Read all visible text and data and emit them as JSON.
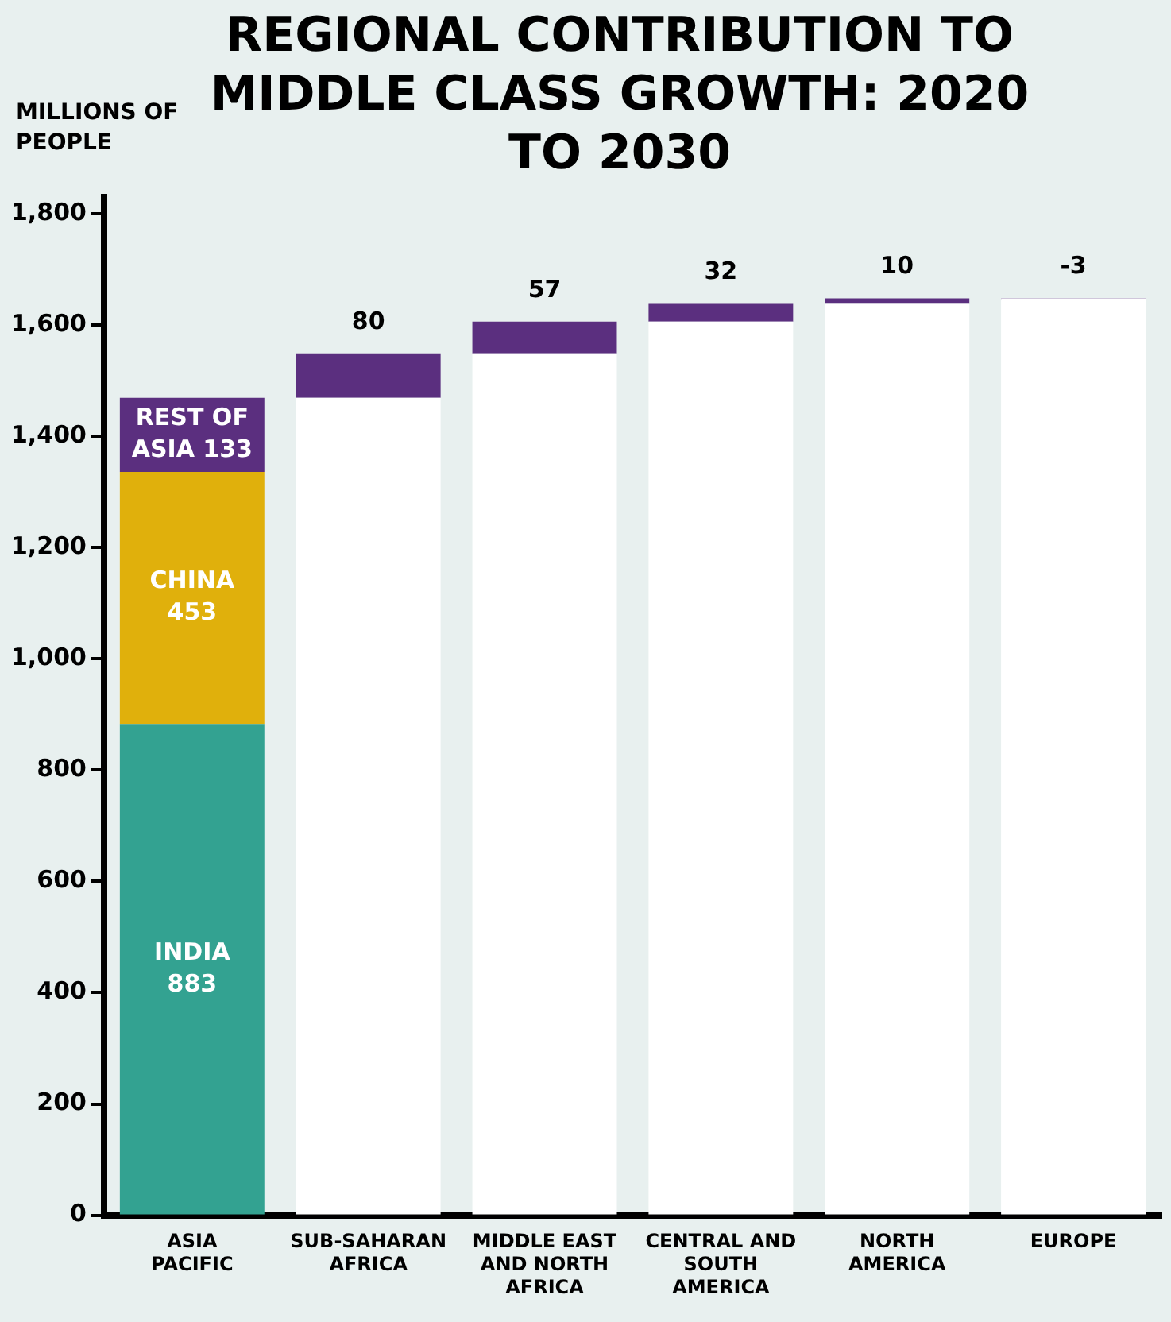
{
  "chart_data": {
    "type": "bar",
    "title": "REGIONAL CONTRIBUTION TO MIDDLE CLASS GROWTH: 2020 TO 2030",
    "ylabel": "MILLIONS OF PEOPLE",
    "categories": [
      "ASIA PACIFIC",
      "SUB-SAHARAN AFRICA",
      "MIDDLE EAST AND NORTH AFRICA",
      "CENTRAL AND SOUTH AMERICA",
      "NORTH AMERICA",
      "EUROPE"
    ],
    "stacked": true,
    "series": [
      {
        "name": "INDIA",
        "color": "#33a291",
        "values": [
          883,
          null,
          null,
          null,
          null,
          null
        ],
        "value_labels": [
          "883",
          null,
          null,
          null,
          null,
          null
        ]
      },
      {
        "name": "CHINA",
        "color": "#e0b00c",
        "values": [
          453,
          null,
          null,
          null,
          null,
          null
        ],
        "value_labels": [
          "453",
          null,
          null,
          null,
          null,
          null
        ]
      },
      {
        "name": "REST OF ASIA",
        "color": "#5b2f7f",
        "values": [
          133,
          null,
          null,
          null,
          null,
          null
        ],
        "value_labels": [
          "133",
          null,
          null,
          null,
          null,
          null
        ]
      },
      {
        "color": "#ffffff",
        "values": [
          null,
          1469,
          1549,
          1606,
          1638,
          1648
        ]
      },
      {
        "color": "#5b2f7f",
        "values": [
          null,
          80,
          57,
          32,
          10,
          -3
        ],
        "base": [
          null,
          1469,
          1549,
          1606,
          1638,
          1648
        ],
        "value_labels": [
          null,
          "80",
          "57",
          "32",
          "10",
          "-3"
        ]
      }
    ],
    "ylim": [
      0,
      1830
    ],
    "yticks": [
      0,
      200,
      400,
      600,
      800,
      {
        "value": 1000,
        "label": "1,000"
      },
      {
        "value": 1200,
        "label": "1,200"
      },
      {
        "value": 1400,
        "label": "1,400"
      },
      {
        "value": 1600,
        "label": "1,600"
      },
      {
        "value": 1800,
        "label": "1,800"
      }
    ],
    "grid": false,
    "legend": false
  }
}
